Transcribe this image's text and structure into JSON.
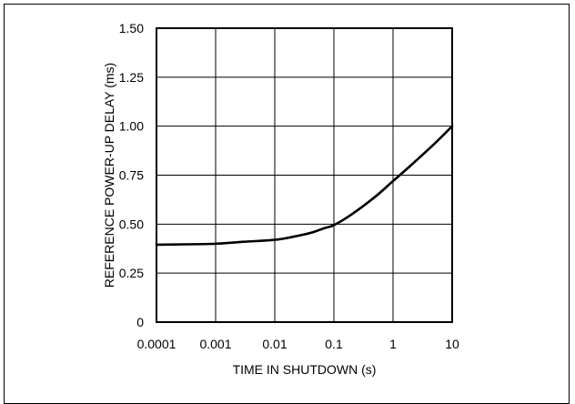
{
  "chart_data": {
    "type": "line",
    "title": "",
    "xlabel": "TIME IN SHUTDOWN (s)",
    "ylabel": "REFERENCE POWER-UP DELAY (ms)",
    "x_scale": "log",
    "xlim": [
      0.0001,
      10
    ],
    "ylim": [
      0,
      1.5
    ],
    "x_ticks": [
      0.0001,
      0.001,
      0.01,
      0.1,
      1,
      10
    ],
    "x_tick_labels": [
      "0.0001",
      "0.001",
      "0.01",
      "0.1",
      "1",
      "10"
    ],
    "y_ticks": [
      0,
      0.25,
      0.5,
      0.75,
      1.0,
      1.25,
      1.5
    ],
    "y_tick_labels": [
      "0",
      "0.25",
      "0.50",
      "0.75",
      "1.00",
      "1.25",
      "1.50"
    ],
    "grid": true,
    "series": [
      {
        "x": [
          0.0001,
          0.0003,
          0.001,
          0.003,
          0.01,
          0.02,
          0.04,
          0.07,
          0.1,
          0.2,
          0.5,
          1,
          2,
          5,
          10
        ],
        "y": [
          0.395,
          0.397,
          0.4,
          0.41,
          0.42,
          0.435,
          0.455,
          0.48,
          0.495,
          0.55,
          0.64,
          0.72,
          0.8,
          0.91,
          1.0
        ],
        "color": "#000000"
      }
    ]
  }
}
